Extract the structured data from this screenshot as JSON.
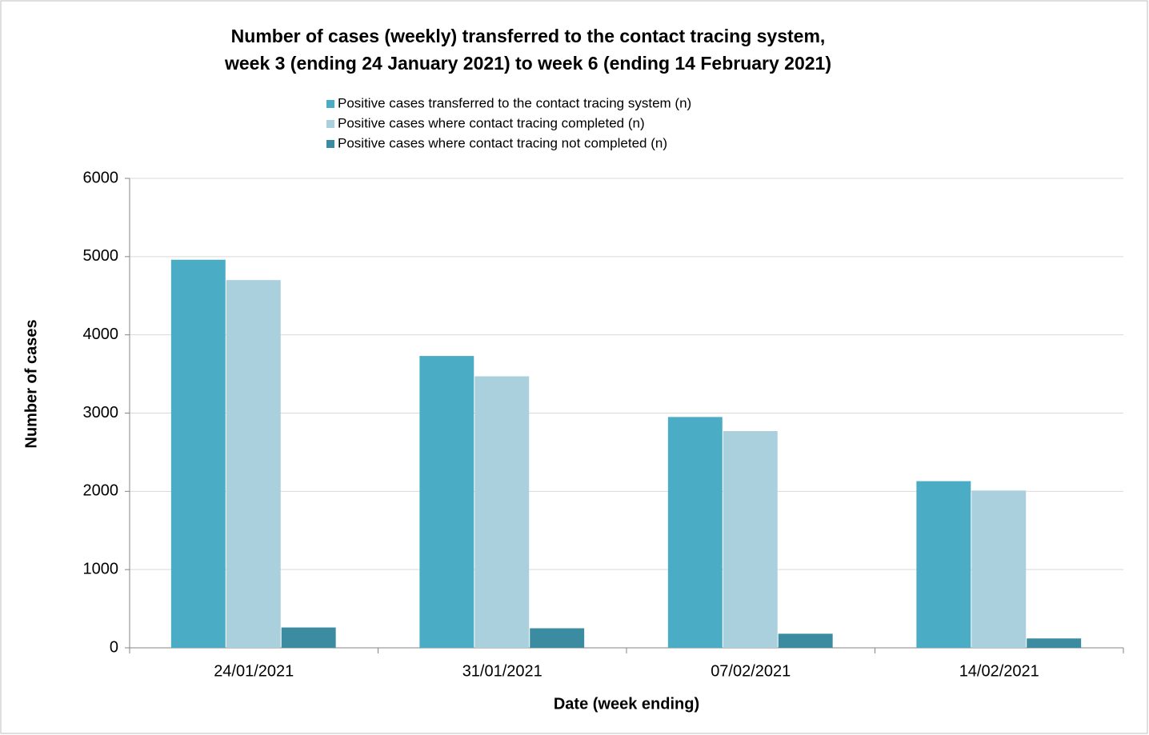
{
  "chart_data": {
    "type": "bar",
    "title": [
      "Number of cases (weekly) transferred to the contact tracing system,",
      "week 3 (ending 24 January 2021) to week 6 (ending 14 February 2021)"
    ],
    "xlabel": "Date (week ending)",
    "ylabel": "Number of cases",
    "categories": [
      "24/01/2021",
      "31/01/2021",
      "07/02/2021",
      "14/02/2021"
    ],
    "series": [
      {
        "name": "Positive cases transferred to the contact tracing system (n)",
        "color": "#4bacc6",
        "values": [
          4960,
          3730,
          2950,
          2130
        ]
      },
      {
        "name": "Positive cases where contact tracing completed (n)",
        "color": "#aacfdd",
        "values": [
          4700,
          3470,
          2770,
          2010
        ]
      },
      {
        "name": "Positive cases where contact tracing not completed (n)",
        "color": "#3b8ba1",
        "values": [
          260,
          250,
          180,
          120
        ]
      }
    ],
    "ylim": [
      0,
      6000
    ],
    "yticks": [
      0,
      1000,
      2000,
      3000,
      4000,
      5000,
      6000
    ],
    "grid": true
  }
}
